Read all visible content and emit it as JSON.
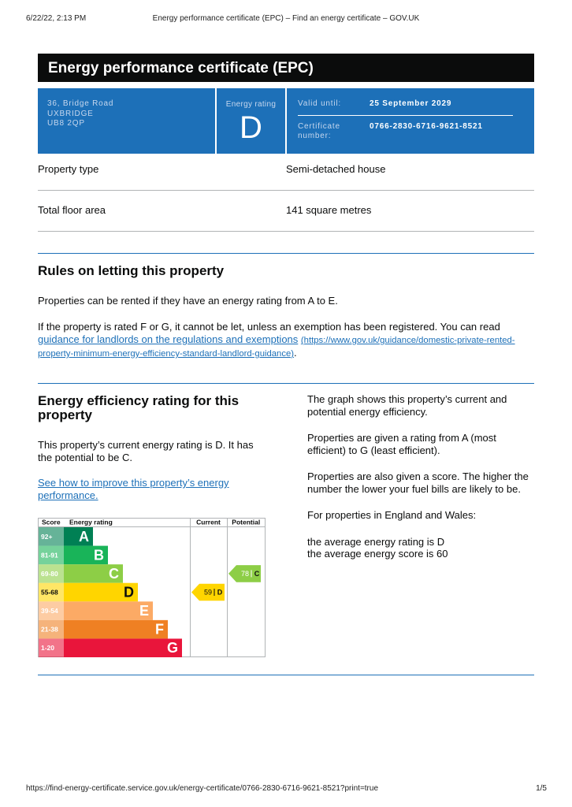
{
  "browser_header": {
    "timestamp": "6/22/22, 2:13 PM",
    "page_title": "Energy performance certificate (EPC) – Find an energy certificate – GOV.UK"
  },
  "title": "Energy performance certificate (EPC)",
  "summary": {
    "address": [
      "36, Bridge Road",
      "UXBRIDGE",
      "UB8 2QP"
    ],
    "rating_label": "Energy rating",
    "rating": "D",
    "valid_until_label": "Valid until:",
    "valid_until": "25 September 2029",
    "certificate_number_label": "Certificate number:",
    "certificate_number": "0766-2830-6716-9621-8521"
  },
  "property_details": [
    {
      "label": "Property type",
      "value": "Semi-detached house"
    },
    {
      "label": "Total floor area",
      "value": "141 square metres"
    }
  ],
  "letting": {
    "heading": "Rules on letting this property",
    "paragraph_1": "Properties can be rented if they have an energy rating from A to E.",
    "paragraph_2": {
      "text": "If the property is rated F or G, it cannot be let, unless an exemption has been registered. You can read",
      "link": "guidance for landlords on the regulations and exemptions",
      "url": "(https://www.gov.uk/guidance/domestic-private-rented-property-minimum-energy-efficiency-standard-landlord-guidance)",
      "end": "."
    }
  },
  "efficiency": {
    "heading": "Energy efficiency rating for this property",
    "paragraph": "This property’s current energy rating is D. It has the potential to be C.",
    "link": "See how to improve this property’s energy performance.",
    "notes": [
      "The graph shows this property’s current and potential energy efficiency.",
      "Properties are given a rating from A (most efficient) to G (least efficient).",
      "Properties are also given a score. The higher the number the lower your fuel bills are likely to be.",
      "For properties in England and Wales:"
    ],
    "averages": [
      "the average energy rating is D",
      "the average energy score is 60"
    ],
    "chart": {
      "headers": [
        "Score",
        "Energy rating",
        "Current",
        "Potential"
      ],
      "bands": [
        {
          "score": "92+",
          "letter": "A",
          "color": "#008054"
        },
        {
          "score": "81-91",
          "letter": "B",
          "color": "#19b459"
        },
        {
          "score": "69-80",
          "letter": "C",
          "color": "#8dce46"
        },
        {
          "score": "55-68",
          "letter": "D",
          "color": "#ffd500"
        },
        {
          "score": "39-54",
          "letter": "E",
          "color": "#fcaa65"
        },
        {
          "score": "21-38",
          "letter": "F",
          "color": "#ef8023"
        },
        {
          "score": "1-20",
          "letter": "G",
          "color": "#e9153b"
        }
      ],
      "current": {
        "score": "59",
        "letter": "D"
      },
      "potential": {
        "score": "78",
        "letter": "C"
      }
    }
  },
  "footer": {
    "url": "https://find-energy-certificate.service.gov.uk/energy-certificate/0766-2830-6716-9621-8521?print=true",
    "page": "1/5"
  }
}
